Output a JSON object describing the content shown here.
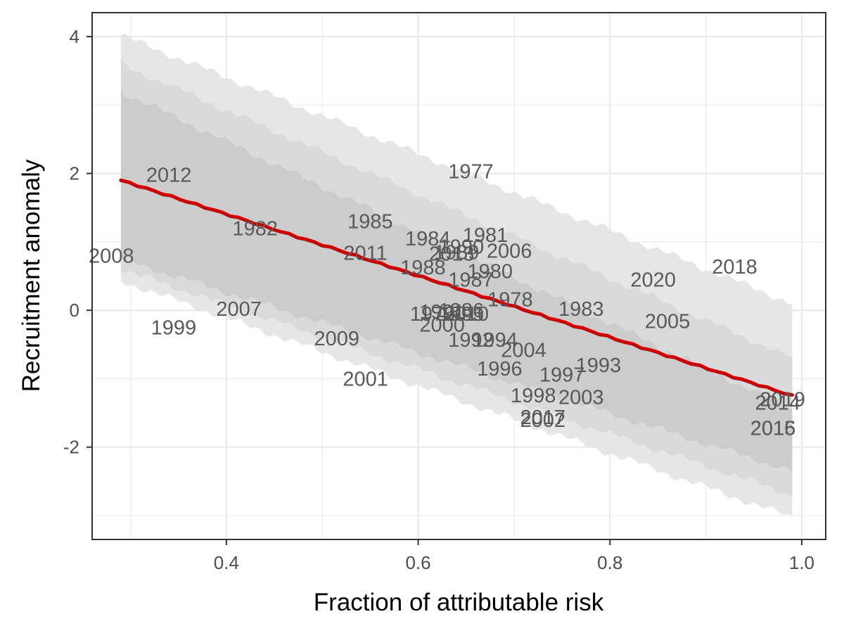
{
  "chart_data": {
    "type": "scatter",
    "xlabel": "Fraction of attributable risk",
    "ylabel": "Recruitment anomaly",
    "xlim": [
      0.26,
      1.025
    ],
    "ylim": [
      -3.35,
      4.35
    ],
    "x_ticks": [
      {
        "value": 0.4,
        "label": "0.4"
      },
      {
        "value": 0.6,
        "label": "0.6"
      },
      {
        "value": 0.8,
        "label": "0.8"
      },
      {
        "value": 1.0,
        "label": "1.0"
      }
    ],
    "y_ticks": [
      {
        "value": -2,
        "label": "-2"
      },
      {
        "value": 0,
        "label": "0"
      },
      {
        "value": 2,
        "label": "2"
      },
      {
        "value": 4,
        "label": "4"
      }
    ],
    "grid": true,
    "colors": {
      "trend": "#cc0000",
      "band_outer": "#e6e6e6",
      "band_middle": "#dadada",
      "band_inner": "#cccccc",
      "label": "#595959",
      "grid": "#ebebeb",
      "panel_border": "#333333"
    },
    "trend_line": {
      "x": [
        0.29,
        0.99
      ],
      "y": [
        1.9,
        -1.25
      ]
    },
    "bands": [
      {
        "level": "outer",
        "x": [
          0.29,
          0.99
        ],
        "upper": [
          4.02,
          0.1
        ],
        "lower": [
          0.43,
          -3.03
        ]
      },
      {
        "level": "middle",
        "x": [
          0.29,
          0.99
        ],
        "upper": [
          3.6,
          -0.7
        ],
        "lower": [
          0.6,
          -2.7
        ]
      },
      {
        "level": "inner",
        "x": [
          0.29,
          0.99
        ],
        "upper": [
          3.2,
          -1.45
        ],
        "lower": [
          0.75,
          -2.35
        ]
      }
    ],
    "points": [
      {
        "label": "1977",
        "x": 0.655,
        "y": 2.03
      },
      {
        "label": "1978",
        "x": 0.696,
        "y": 0.16
      },
      {
        "label": "1979",
        "x": 0.615,
        "y": -0.05
      },
      {
        "label": "1980",
        "x": 0.675,
        "y": 0.57
      },
      {
        "label": "1981",
        "x": 0.67,
        "y": 1.1
      },
      {
        "label": "1982",
        "x": 0.43,
        "y": 1.2
      },
      {
        "label": "1983",
        "x": 0.77,
        "y": 0.02
      },
      {
        "label": "1984",
        "x": 0.61,
        "y": 1.05
      },
      {
        "label": "1985",
        "x": 0.55,
        "y": 1.3
      },
      {
        "label": "1986",
        "x": 0.645,
        "y": 0.0
      },
      {
        "label": "1987",
        "x": 0.655,
        "y": 0.45
      },
      {
        "label": "1988",
        "x": 0.605,
        "y": 0.63
      },
      {
        "label": "1989",
        "x": 0.64,
        "y": 0.85
      },
      {
        "label": "1990",
        "x": 0.645,
        "y": 0.93
      },
      {
        "label": "1991",
        "x": 0.625,
        "y": -0.02
      },
      {
        "label": "1992",
        "x": 0.655,
        "y": -0.43
      },
      {
        "label": "1993",
        "x": 0.788,
        "y": -0.8
      },
      {
        "label": "1994",
        "x": 0.68,
        "y": -0.43
      },
      {
        "label": "1995",
        "x": 0.645,
        "y": -0.05
      },
      {
        "label": "1996",
        "x": 0.685,
        "y": -0.85
      },
      {
        "label": "1997",
        "x": 0.75,
        "y": -0.94
      },
      {
        "label": "1998",
        "x": 0.72,
        "y": -1.24
      },
      {
        "label": "1999",
        "x": 0.345,
        "y": -0.25
      },
      {
        "label": "2000",
        "x": 0.625,
        "y": -0.21
      },
      {
        "label": "2001",
        "x": 0.545,
        "y": -1.0
      },
      {
        "label": "2002",
        "x": 0.73,
        "y": -1.6
      },
      {
        "label": "2003",
        "x": 0.77,
        "y": -1.27
      },
      {
        "label": "2004",
        "x": 0.71,
        "y": -0.58
      },
      {
        "label": "2005",
        "x": 0.86,
        "y": -0.16
      },
      {
        "label": "2006",
        "x": 0.695,
        "y": 0.87
      },
      {
        "label": "2007",
        "x": 0.413,
        "y": 0.02
      },
      {
        "label": "2008",
        "x": 0.28,
        "y": 0.8
      },
      {
        "label": "2009",
        "x": 0.515,
        "y": -0.41
      },
      {
        "label": "2010",
        "x": 0.65,
        "y": -0.05
      },
      {
        "label": "2011",
        "x": 0.545,
        "y": 0.84
      },
      {
        "label": "2012",
        "x": 0.34,
        "y": 1.98
      },
      {
        "label": "2013",
        "x": 0.635,
        "y": 0.83
      },
      {
        "label": "2014",
        "x": 0.975,
        "y": -1.35
      },
      {
        "label": "2015",
        "x": 0.97,
        "y": -1.72
      },
      {
        "label": "2016",
        "x": 0.97,
        "y": -1.72
      },
      {
        "label": "2017",
        "x": 0.73,
        "y": -1.56
      },
      {
        "label": "2018",
        "x": 0.93,
        "y": 0.64
      },
      {
        "label": "2019",
        "x": 0.98,
        "y": -1.3
      },
      {
        "label": "2020",
        "x": 0.845,
        "y": 0.45
      }
    ]
  }
}
